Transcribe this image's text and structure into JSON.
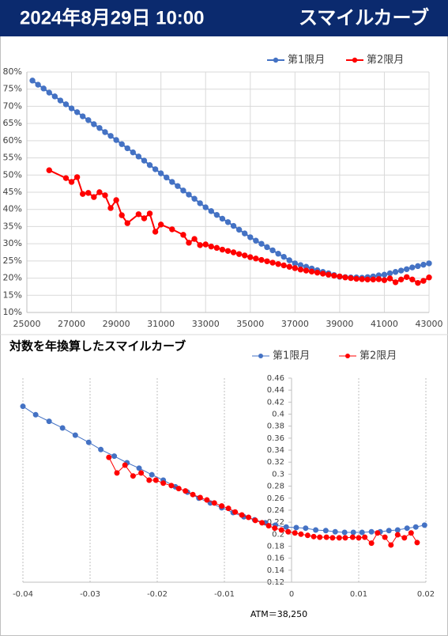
{
  "header": {
    "date": "2024年8月29日 10:00",
    "title": "スマイルカーブ"
  },
  "chart_data": [
    {
      "type": "line",
      "legend": "top-right",
      "grid": true,
      "xlim": [
        25000,
        43000
      ],
      "xticks": [
        25000,
        27000,
        29000,
        31000,
        33000,
        35000,
        37000,
        39000,
        41000,
        43000
      ],
      "ylim": [
        10,
        80
      ],
      "yticks": [
        {
          "value": 10,
          "label": "10%"
        },
        {
          "value": 15,
          "label": "15%"
        },
        {
          "value": 20,
          "label": "20%"
        },
        {
          "value": 25,
          "label": "25%"
        },
        {
          "value": 30,
          "label": "30%"
        },
        {
          "value": 35,
          "label": "35%"
        },
        {
          "value": 40,
          "label": "40%"
        },
        {
          "value": 45,
          "label": "45%"
        },
        {
          "value": 50,
          "label": "50%"
        },
        {
          "value": 55,
          "label": "55%"
        },
        {
          "value": 60,
          "label": "60%"
        },
        {
          "value": 65,
          "label": "65%"
        },
        {
          "value": 70,
          "label": "70%"
        },
        {
          "value": 75,
          "label": "75%"
        },
        {
          "value": 80,
          "label": "80%"
        }
      ],
      "series": [
        {
          "name": "第1限月",
          "color": "#4472c4",
          "x": [
            25250,
            25500,
            25750,
            26000,
            26250,
            26500,
            26750,
            27000,
            27250,
            27500,
            27750,
            28000,
            28250,
            28500,
            28750,
            29000,
            29250,
            29500,
            29750,
            30000,
            30250,
            30500,
            30750,
            31000,
            31250,
            31500,
            31750,
            32000,
            32250,
            32500,
            32750,
            33000,
            33250,
            33500,
            33750,
            34000,
            34250,
            34500,
            34750,
            35000,
            35250,
            35500,
            35750,
            36000,
            36250,
            36500,
            36750,
            37000,
            37250,
            37500,
            37750,
            38000,
            38250,
            38500,
            38750,
            39000,
            39250,
            39500,
            39750,
            40000,
            40250,
            40500,
            40750,
            41000,
            41250,
            41500,
            41750,
            42000,
            42250,
            42500,
            42750,
            43000
          ],
          "values": [
            77.5,
            76.3,
            75.2,
            74.0,
            72.9,
            71.7,
            70.6,
            69.4,
            68.3,
            67.1,
            66.0,
            64.8,
            63.7,
            62.5,
            61.4,
            60.2,
            59.0,
            57.8,
            56.6,
            55.4,
            54.2,
            52.9,
            51.7,
            50.5,
            49.3,
            48.0,
            46.8,
            45.5,
            44.3,
            43.1,
            41.8,
            40.6,
            39.5,
            38.4,
            37.3,
            36.3,
            35.2,
            34.1,
            33.0,
            31.9,
            30.9,
            30.0,
            29.0,
            28.1,
            27.1,
            26.2,
            25.2,
            24.3,
            23.8,
            23.3,
            22.8,
            22.3,
            21.8,
            21.4,
            20.9,
            20.4,
            20.3,
            20.2,
            20.2,
            20.1,
            20.3,
            20.5,
            20.8,
            21.0,
            21.4,
            21.8,
            22.2,
            22.6,
            23.1,
            23.5,
            23.9,
            24.3
          ]
        },
        {
          "name": "第2限月",
          "color": "#ff0000",
          "x": [
            26000,
            26750,
            27000,
            27250,
            27500,
            27750,
            28000,
            28250,
            28500,
            28750,
            29000,
            29250,
            29500,
            30000,
            30250,
            30500,
            30750,
            31000,
            31500,
            32000,
            32250,
            32500,
            32750,
            33000,
            33250,
            33500,
            33750,
            34000,
            34250,
            34500,
            34750,
            35000,
            35250,
            35500,
            35750,
            36000,
            36250,
            36500,
            36750,
            37000,
            37250,
            37500,
            37750,
            38000,
            38250,
            38500,
            38750,
            39000,
            39250,
            39500,
            39750,
            40000,
            40250,
            40500,
            40750,
            41000,
            41250,
            41500,
            41750,
            42000,
            42250,
            42500,
            42750,
            43000
          ],
          "values": [
            51.4,
            49.1,
            48.0,
            49.4,
            44.5,
            44.8,
            43.6,
            45.0,
            44.1,
            40.4,
            42.7,
            38.3,
            36.0,
            38.6,
            37.4,
            38.8,
            33.5,
            35.6,
            34.2,
            32.6,
            30.3,
            31.4,
            29.6,
            29.8,
            29.2,
            28.8,
            28.3,
            27.9,
            27.5,
            27.0,
            26.6,
            26.1,
            25.7,
            25.3,
            24.9,
            24.5,
            24.1,
            23.7,
            23.3,
            22.9,
            22.5,
            22.2,
            21.9,
            21.6,
            21.3,
            21.0,
            20.7,
            20.5,
            20.2,
            20.0,
            19.8,
            19.7,
            19.6,
            19.6,
            19.7,
            19.4,
            19.9,
            18.8,
            19.6,
            20.3,
            19.6,
            18.6,
            19.2,
            20.2
          ]
        }
      ]
    },
    {
      "type": "line",
      "title": "対数を年換算したスマイルカーブ",
      "annotation": "ATM＝38,250",
      "legend": "top-right",
      "grid": "x",
      "xlim": [
        -0.04,
        0.02
      ],
      "xticks": [
        -0.04,
        -0.03,
        -0.02,
        -0.01,
        0,
        0.01,
        0.02
      ],
      "ylim": [
        0.12,
        0.46
      ],
      "yticks": [
        0.12,
        0.14,
        0.16,
        0.18,
        0.2,
        0.22,
        0.24,
        0.26,
        0.28,
        0.3,
        0.32,
        0.34,
        0.36,
        0.38,
        0.4,
        0.42,
        0.44,
        0.46
      ],
      "series": [
        {
          "name": "第1限月",
          "color": "#4472c4",
          "x": [
            -0.04,
            -0.0381,
            -0.0361,
            -0.0341,
            -0.0322,
            -0.0302,
            -0.0284,
            -0.0264,
            -0.0245,
            -0.0227,
            -0.0208,
            -0.0191,
            -0.0173,
            -0.0155,
            -0.0138,
            -0.0121,
            -0.0104,
            -0.0087,
            -0.0071,
            -0.0055,
            -0.0039,
            -0.0024,
            -0.0008,
            0.0007,
            0.0021,
            0.0036,
            0.0051,
            0.0065,
            0.0079,
            0.0092,
            0.0105,
            0.0119,
            0.0132,
            0.0145,
            0.0158,
            0.0172,
            0.0185,
            0.0198
          ],
          "values": [
            0.413,
            0.399,
            0.388,
            0.377,
            0.365,
            0.353,
            0.341,
            0.33,
            0.319,
            0.31,
            0.299,
            0.29,
            0.279,
            0.27,
            0.26,
            0.252,
            0.244,
            0.236,
            0.229,
            0.224,
            0.219,
            0.215,
            0.212,
            0.211,
            0.21,
            0.207,
            0.206,
            0.204,
            0.203,
            0.203,
            0.203,
            0.204,
            0.204,
            0.206,
            0.207,
            0.21,
            0.212,
            0.215
          ]
        },
        {
          "name": "第2限月",
          "color": "#ff0000",
          "x": [
            -0.0272,
            -0.026,
            -0.0248,
            -0.0236,
            -0.0224,
            -0.0212,
            -0.0202,
            -0.0191,
            -0.0179,
            -0.0168,
            -0.0158,
            -0.0147,
            -0.0136,
            -0.0126,
            -0.0115,
            -0.0104,
            -0.0094,
            -0.0084,
            -0.0074,
            -0.0064,
            -0.0054,
            -0.0044,
            -0.0034,
            -0.0025,
            -0.0015,
            -0.0005,
            0.0005,
            0.0014,
            0.0024,
            0.0033,
            0.0042,
            0.0052,
            0.0061,
            0.0071,
            0.008,
            0.0091,
            0.01,
            0.0109,
            0.0119,
            0.0128,
            0.0139,
            0.0148,
            0.0158,
            0.0168,
            0.0178,
            0.0187
          ],
          "values": [
            0.328,
            0.302,
            0.315,
            0.297,
            0.302,
            0.29,
            0.29,
            0.285,
            0.281,
            0.276,
            0.272,
            0.266,
            0.261,
            0.257,
            0.252,
            0.247,
            0.243,
            0.237,
            0.232,
            0.228,
            0.223,
            0.219,
            0.214,
            0.21,
            0.207,
            0.204,
            0.202,
            0.2,
            0.198,
            0.196,
            0.195,
            0.195,
            0.194,
            0.194,
            0.194,
            0.195,
            0.194,
            0.195,
            0.185,
            0.202,
            0.195,
            0.182,
            0.199,
            0.194,
            0.202,
            0.186
          ]
        }
      ]
    }
  ]
}
